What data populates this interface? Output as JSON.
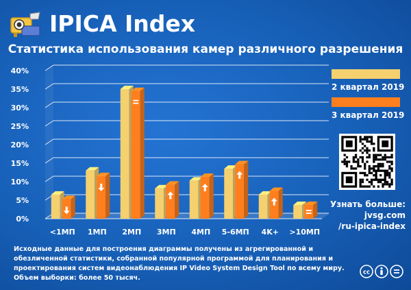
{
  "header": {
    "brand": "IPICA Index",
    "subtitle": "Статистика использования камер различного разрешения"
  },
  "legend": {
    "items": [
      {
        "label": "2 квартал 2019",
        "color": "#f5d06f"
      },
      {
        "label": "3 квартал 2019",
        "color": "#ff7f1e"
      }
    ]
  },
  "more": {
    "lines": [
      "Узнать больше:",
      "jvsg.com",
      "/ru-ipica-index"
    ]
  },
  "footnote": "Исходные данные для построения диаграммы получены из агрегированной и обезличенной статистики, собранной популярной программой для планирования и проектирования систем видеонаблюдения IP Video System Design Tool по всему миру. Объем выборки: более 50 тысяч.",
  "colors": {
    "background": "#1a5fb4",
    "q2": "#f5d06f",
    "q3": "#ff7f1e",
    "marker": "#ffffff"
  },
  "chart_data": {
    "type": "bar",
    "categories": [
      "<1МП",
      "1МП",
      "2МП",
      "3МП",
      "4МП",
      "5-6МП",
      "4K+",
      ">10МП"
    ],
    "series": [
      {
        "name": "2 квартал 2019",
        "values": [
          6.5,
          13,
          35,
          8.2,
          10.3,
          13.5,
          6.5,
          3.7
        ]
      },
      {
        "name": "3 квартал 2019",
        "values": [
          5.3,
          11.5,
          34.5,
          9.2,
          11.3,
          14.7,
          7.5,
          3.7
        ]
      }
    ],
    "trend_markers": [
      "down",
      "down",
      "equal",
      "up",
      "up",
      "up",
      "up",
      "equal"
    ],
    "ylim": [
      0,
      40
    ],
    "yticks": [
      "0%",
      "5%",
      "10%",
      "15%",
      "20%",
      "25%",
      "30%",
      "35%",
      "40%"
    ],
    "xlabel": "",
    "ylabel": "",
    "grid": true,
    "legend_position": "right"
  }
}
